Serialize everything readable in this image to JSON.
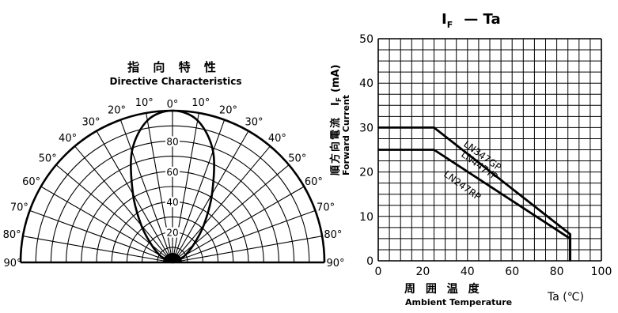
{
  "polar_chart": {
    "title_cjk": "指  向  特  性",
    "title_en": "Directive     Characteristics",
    "angle_labels_left": [
      "0°",
      "10°",
      "20°",
      "30°",
      "40°",
      "50°",
      "60°",
      "70°",
      "80°",
      "90°"
    ],
    "angle_labels_right": [
      "10°",
      "20°",
      "30°",
      "40°",
      "50°",
      "60°",
      "70°",
      "80°",
      "90°"
    ],
    "radial_labels": [
      "20",
      "40",
      "60",
      "80"
    ],
    "chart_data": {
      "type": "line",
      "coordinate_system": "polar",
      "angles_deg": [
        0,
        10,
        20,
        30,
        40,
        50,
        60,
        70,
        80,
        90
      ],
      "radial_range": [
        0,
        100
      ],
      "series": [
        {
          "values": [
            100,
            95,
            78,
            52,
            32,
            18,
            10,
            5,
            2,
            0
          ]
        }
      ]
    }
  },
  "line_chart": {
    "title_main": "I",
    "title_sub": "F",
    "title_rest": "— Ta",
    "ylabel_cjk": "順方向電流",
    "ylabel_en": "Forward Current",
    "ylabel_symbol": "I",
    "ylabel_symbol_sub": "F",
    "ylabel_unit": "(mA)",
    "xlabel_cjk": "周  囲  温  度",
    "xlabel_en": "Ambient Temperature",
    "xlabel_unit": "Ta (℃)",
    "x_ticks": [
      "0",
      "20",
      "40",
      "60",
      "80",
      "100"
    ],
    "y_ticks": [
      "0",
      "10",
      "20",
      "30",
      "40",
      "50"
    ],
    "chart_data": {
      "type": "line",
      "xlim": [
        0,
        100
      ],
      "ylim": [
        0,
        50
      ],
      "grid": true,
      "series": [
        {
          "name": "LN347GP / LN447YP",
          "x": [
            0,
            25,
            86,
            86
          ],
          "y": [
            30,
            30,
            6,
            0
          ]
        },
        {
          "name": "LN247RP",
          "x": [
            0,
            25,
            86,
            86
          ],
          "y": [
            25,
            25,
            5,
            0
          ]
        }
      ],
      "annotations": [
        "LN347GP",
        "LN447YP",
        "LN247RP"
      ]
    }
  }
}
